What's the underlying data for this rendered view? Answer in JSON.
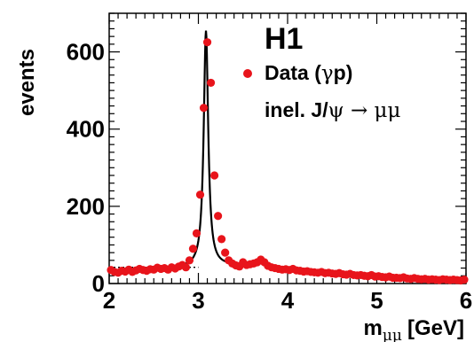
{
  "chart_data": {
    "type": "scatter",
    "experiment_label": "H1",
    "xlabel_main": "m",
    "xlabel_sub": "μμ",
    "xlabel_unit": "[GeV]",
    "ylabel": "events",
    "xlim": [
      2,
      6
    ],
    "ylim": [
      0,
      700
    ],
    "x_ticks": [
      "2",
      "3",
      "4",
      "5",
      "6"
    ],
    "y_ticks": [
      "0",
      "200",
      "400",
      "600"
    ],
    "legend": {
      "data_label_pre": "Data (",
      "data_label_greek": "γ",
      "data_label_post": "p)",
      "process_pre": "inel. J/",
      "process_greek": "ψ",
      "process_arrow": " → ",
      "process_final": "μμ"
    },
    "colors": {
      "data": "#e8141b",
      "fit": "#000000",
      "background": "#000000"
    },
    "series": [
      {
        "kind": "data",
        "x": [
          2.02,
          2.06,
          2.1,
          2.14,
          2.18,
          2.22,
          2.26,
          2.3,
          2.34,
          2.38,
          2.42,
          2.46,
          2.5,
          2.54,
          2.58,
          2.62,
          2.66,
          2.7,
          2.74,
          2.78,
          2.82,
          2.86,
          2.9,
          2.94,
          2.98,
          3.02,
          3.06,
          3.1,
          3.14,
          3.18,
          3.22,
          3.26,
          3.3,
          3.34,
          3.38,
          3.42,
          3.46,
          3.5,
          3.54,
          3.58,
          3.62,
          3.66,
          3.7,
          3.74,
          3.78,
          3.82,
          3.86,
          3.9,
          3.94,
          3.98,
          4.02,
          4.06,
          4.1,
          4.14,
          4.18,
          4.22,
          4.26,
          4.3,
          4.34,
          4.38,
          4.42,
          4.46,
          4.5,
          4.54,
          4.58,
          4.62,
          4.66,
          4.7,
          4.74,
          4.78,
          4.82,
          4.86,
          4.9,
          4.94,
          4.98,
          5.02,
          5.06,
          5.1,
          5.14,
          5.18,
          5.22,
          5.26,
          5.3,
          5.34,
          5.38,
          5.42,
          5.46,
          5.5,
          5.54,
          5.58,
          5.62,
          5.66,
          5.7,
          5.74,
          5.78,
          5.82,
          5.86,
          5.9,
          5.94,
          5.98
        ],
        "y": [
          35,
          30,
          28,
          33,
          31,
          36,
          30,
          34,
          38,
          35,
          33,
          37,
          36,
          41,
          38,
          40,
          36,
          42,
          39,
          44,
          48,
          42,
          60,
          90,
          130,
          230,
          455,
          625,
          520,
          280,
          175,
          115,
          80,
          60,
          52,
          47,
          44,
          55,
          48,
          50,
          52,
          55,
          62,
          55,
          46,
          42,
          40,
          38,
          36,
          37,
          35,
          38,
          34,
          33,
          31,
          32,
          30,
          29,
          28,
          30,
          27,
          28,
          26,
          25,
          27,
          24,
          23,
          25,
          22,
          21,
          22,
          20,
          19,
          22,
          18,
          19,
          17,
          16,
          18,
          15,
          15,
          14,
          16,
          13,
          12,
          14,
          12,
          11,
          12,
          10,
          11,
          10,
          9,
          11,
          10,
          9,
          10,
          9,
          8,
          10
        ]
      }
    ],
    "fit_curve": {
      "peaks": [
        {
          "mean": 3.085,
          "width": 0.045,
          "amplitude": 612
        },
        {
          "mean": 3.69,
          "width": 0.05,
          "amplitude": 20
        }
      ],
      "background_linear_values": [
        [
          2.0,
          34
        ],
        [
          3.0,
          42
        ],
        [
          3.5,
          48
        ],
        [
          4.0,
          38
        ],
        [
          5.0,
          22
        ],
        [
          6.0,
          10
        ]
      ]
    },
    "background_line": {
      "x": [
        2.0,
        3.0
      ],
      "y": [
        42,
        42
      ]
    }
  }
}
